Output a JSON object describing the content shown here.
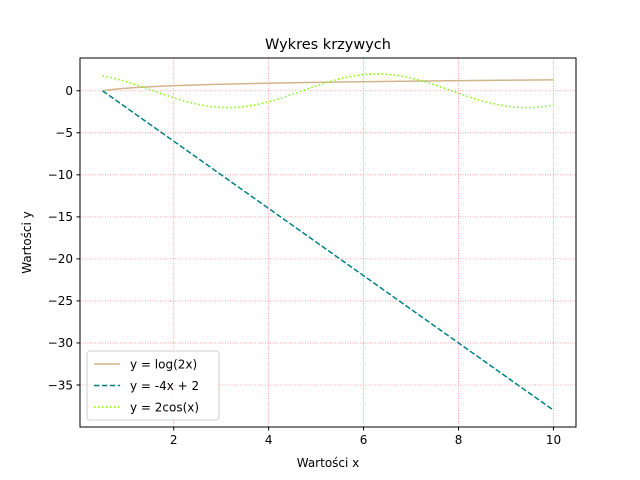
{
  "chart_data": {
    "type": "line",
    "title": "Wykres krzywych",
    "xlabel": "Wartości x",
    "ylabel": "Wartości y",
    "xlim": [
      0.025,
      10.475
    ],
    "ylim": [
      -40.0,
      3.9
    ],
    "x_ticks": [
      2,
      4,
      6,
      8,
      10
    ],
    "y_ticks": [
      0,
      -5,
      -10,
      -15,
      -20,
      -25,
      -30,
      -35
    ],
    "x_tick_labels": [
      "2",
      "4",
      "6",
      "8",
      "10"
    ],
    "y_tick_labels": [
      "0",
      "−5",
      "−10",
      "−15",
      "−20",
      "−25",
      "−30",
      "−35"
    ],
    "x_range": [
      0.5,
      10
    ],
    "grid": true,
    "grid_color": "#ff0000",
    "legend_position": "lower-left",
    "series": [
      {
        "name": "y = log(2x)",
        "formula": "log(2x)",
        "color": "#d2b48c",
        "style": "solid"
      },
      {
        "name": "y = -4x + 2",
        "formula": "-4x + 2",
        "color": "#008080",
        "style": "dashed"
      },
      {
        "name": "y = 2cos(x)",
        "formula": "2cos(x)",
        "color": "#7cfc00",
        "style": "dotted"
      }
    ]
  }
}
